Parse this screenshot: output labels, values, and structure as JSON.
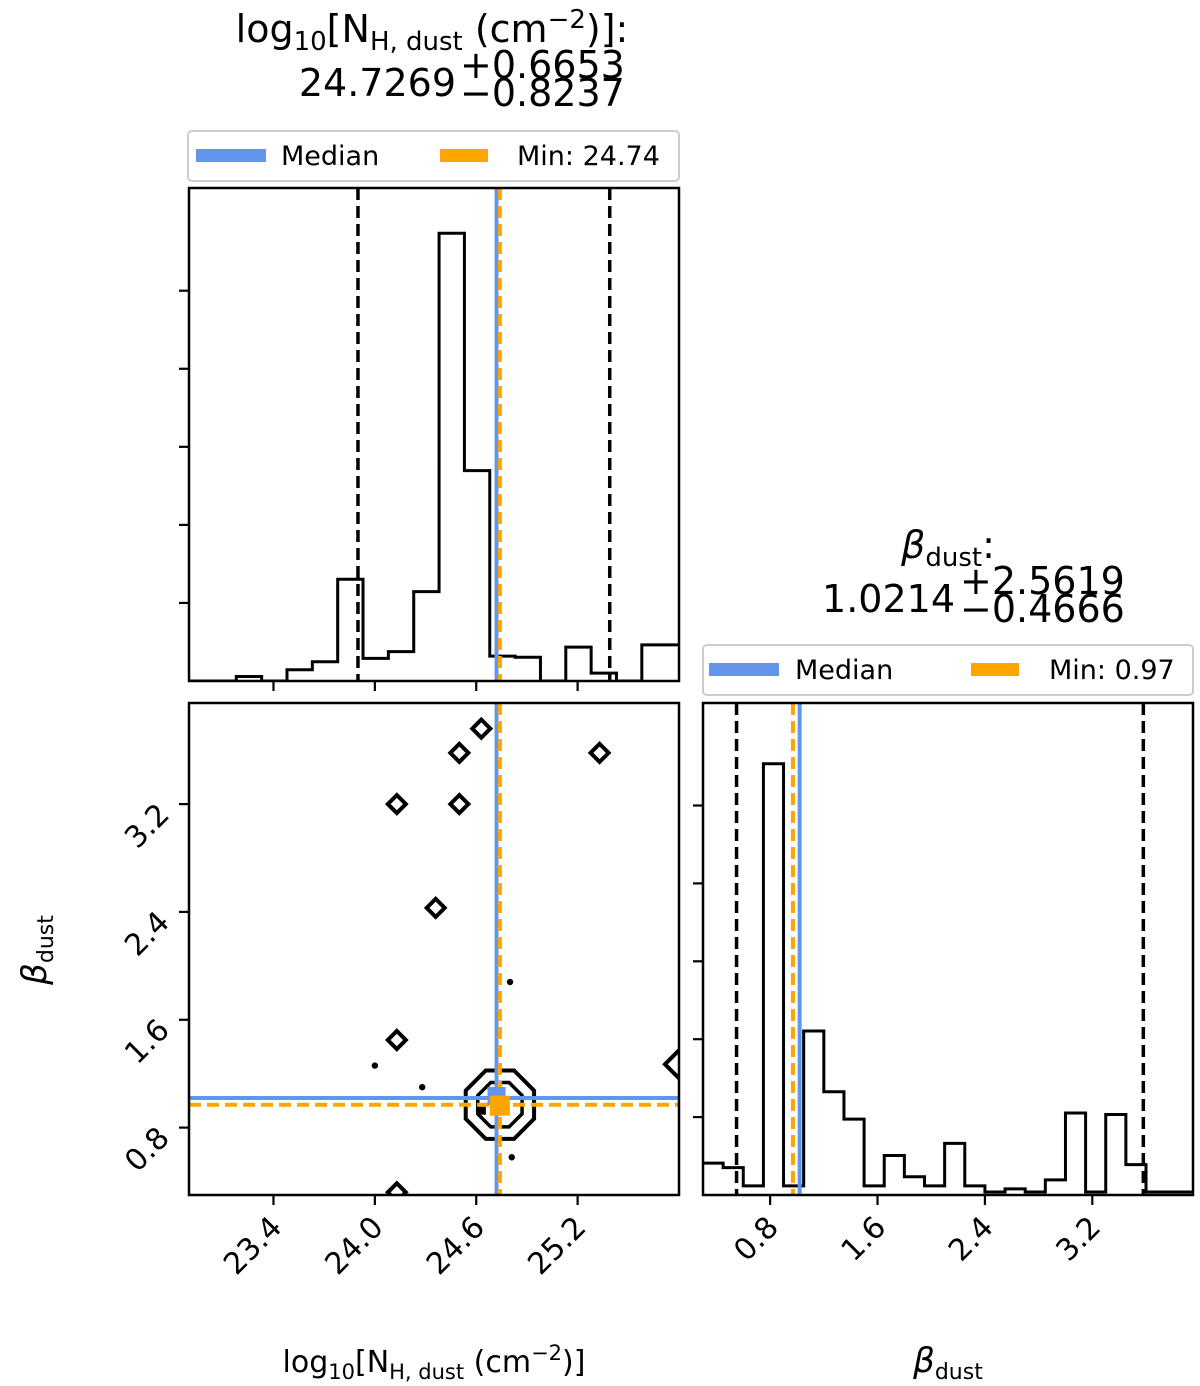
{
  "colors": {
    "median": "#6495ED",
    "min": "#FFA500",
    "quantile": "#000000"
  },
  "chart_data": [
    {
      "type": "histogram",
      "panel": "top-left",
      "title_prefix": "log",
      "title_sub": "10",
      "title_bracket": "[N",
      "title_nsub": "H, dust",
      "title_unit": " (cm",
      "title_exp": "−2",
      "title_close": ")]:",
      "value": "24.7269",
      "err_plus": "+0.6653",
      "err_minus": "−0.8237",
      "xlim": [
        22.9,
        25.8
      ],
      "bins": [
        22.88,
        23.03,
        23.18,
        23.33,
        23.48,
        23.63,
        23.78,
        23.93,
        24.08,
        24.23,
        24.38,
        24.53,
        24.68,
        24.83,
        24.98,
        25.13,
        25.28,
        25.43,
        25.58,
        25.73,
        25.83
      ],
      "counts": [
        0,
        0,
        0.2,
        0,
        0.5,
        0.85,
        4.5,
        1.0,
        1.3,
        3.95,
        19.8,
        9.3,
        1.1,
        1.05,
        0,
        1.5,
        0.35,
        0,
        1.6,
        1.6
      ],
      "ylim": [
        0,
        21.8
      ],
      "quantiles": [
        23.9,
        25.39
      ],
      "median": 24.72,
      "min": 24.74,
      "legend": {
        "median_label": "Median",
        "min_label": "Min: 24.74"
      }
    },
    {
      "type": "contour",
      "panel": "bottom-left",
      "xlabel_prefix": "log",
      "xlabel_sub": "10",
      "xlabel_bracket": "[N",
      "xlabel_nsub": "H, dust",
      "xlabel_unit": " (cm",
      "xlabel_exp": "−2",
      "xlabel_close": ")]",
      "ylabel_symbol": "β",
      "ylabel_sub": "dust",
      "xlim": [
        22.9,
        25.8
      ],
      "ylim": [
        0.3,
        3.95
      ],
      "xticks": [
        23.4,
        24.0,
        24.6,
        25.2
      ],
      "xticklabels": [
        "23.4",
        "24.0",
        "24.6",
        "25.2"
      ],
      "yticks": [
        0.8,
        1.6,
        2.4,
        3.2
      ],
      "yticklabels": [
        "0.8",
        "1.6",
        "2.4",
        "3.2"
      ],
      "diamonds": [
        [
          24.63,
          3.76
        ],
        [
          24.5,
          3.58
        ],
        [
          25.33,
          3.58
        ],
        [
          24.13,
          3.2
        ],
        [
          24.5,
          3.2
        ],
        [
          24.36,
          2.43
        ],
        [
          24.13,
          1.45
        ],
        [
          24.13,
          0.32
        ]
      ],
      "dots": [
        [
          24.8,
          1.88
        ],
        [
          24.0,
          1.26
        ],
        [
          24.28,
          1.1
        ],
        [
          24.81,
          0.58
        ]
      ],
      "partial": [
        [
          25.8,
          1.27
        ]
      ],
      "contour_center": [
        24.74,
        0.97
      ],
      "median_point": [
        24.72,
        1.02
      ],
      "min_point": [
        24.74,
        0.97
      ]
    },
    {
      "type": "histogram",
      "panel": "bottom-right",
      "title_symbol": "β",
      "title_sub": "dust",
      "title_colon": ":",
      "value": "1.0214",
      "err_plus": "+2.5619",
      "err_minus": "−0.4666",
      "xlim": [
        0.3,
        3.95
      ],
      "xticks": [
        0.8,
        1.6,
        2.4,
        3.2
      ],
      "xticklabels": [
        "0.8",
        "1.6",
        "2.4",
        "3.2"
      ],
      "xlabel_symbol": "β",
      "xlabel_sub": "dust",
      "bins": [
        0.3,
        0.45,
        0.6,
        0.75,
        0.9,
        1.05,
        1.2,
        1.35,
        1.5,
        1.65,
        1.8,
        1.95,
        2.1,
        2.25,
        2.4,
        2.55,
        2.7,
        2.85,
        3.0,
        3.15,
        3.3,
        3.45,
        3.6,
        3.75,
        3.95
      ],
      "counts": [
        1.05,
        0.9,
        0.3,
        14.2,
        0.3,
        5.4,
        3.4,
        2.5,
        0.3,
        1.3,
        0.6,
        0.3,
        1.7,
        0.3,
        0.1,
        0.2,
        0.1,
        0.5,
        2.7,
        0.1,
        2.65,
        1.0,
        0.1,
        0.1
      ],
      "ylim": [
        0,
        16.2
      ],
      "quantiles": [
        0.55,
        3.58
      ],
      "median": 1.02,
      "min": 0.97,
      "legend": {
        "median_label": "Median",
        "min_label": "Min: 0.97"
      }
    }
  ]
}
